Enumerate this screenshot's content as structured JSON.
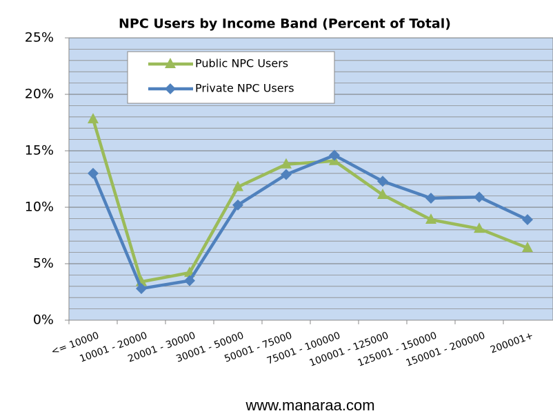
{
  "chart_data": {
    "type": "line",
    "title": "NPC Users by Income Band (Percent of Total)",
    "categories": [
      "<= 10000",
      "10001 - 20000",
      "20001 - 30000",
      "30001 - 50000",
      "50001 - 75000",
      "75001 - 100000",
      "100001 - 125000",
      "125001 - 150000",
      "150001 - 200000",
      "200001+"
    ],
    "series": [
      {
        "name": "Public NPC Users",
        "color": "#9bbb59",
        "marker": "triangle",
        "values": [
          17.8,
          3.4,
          4.2,
          11.8,
          13.8,
          14.1,
          11.1,
          8.9,
          8.1,
          6.4
        ]
      },
      {
        "name": "Private NPC Users",
        "color": "#4f81bd",
        "marker": "diamond",
        "values": [
          13.0,
          2.8,
          3.5,
          10.2,
          12.9,
          14.6,
          12.3,
          10.8,
          10.9,
          8.9
        ]
      }
    ],
    "ylim": [
      0,
      25
    ],
    "yticks": [
      {
        "value": 0,
        "label": "0%"
      },
      {
        "value": 5,
        "label": "5%"
      },
      {
        "value": 10,
        "label": "10%"
      },
      {
        "value": 15,
        "label": "15%"
      },
      {
        "value": 20,
        "label": "20%"
      },
      {
        "value": 25,
        "label": "25%"
      }
    ],
    "minor_grid_step": 1,
    "grid": true,
    "plot_background": "#c6d9f1",
    "legend": "upper left"
  },
  "footer": "www.manaraa.com"
}
